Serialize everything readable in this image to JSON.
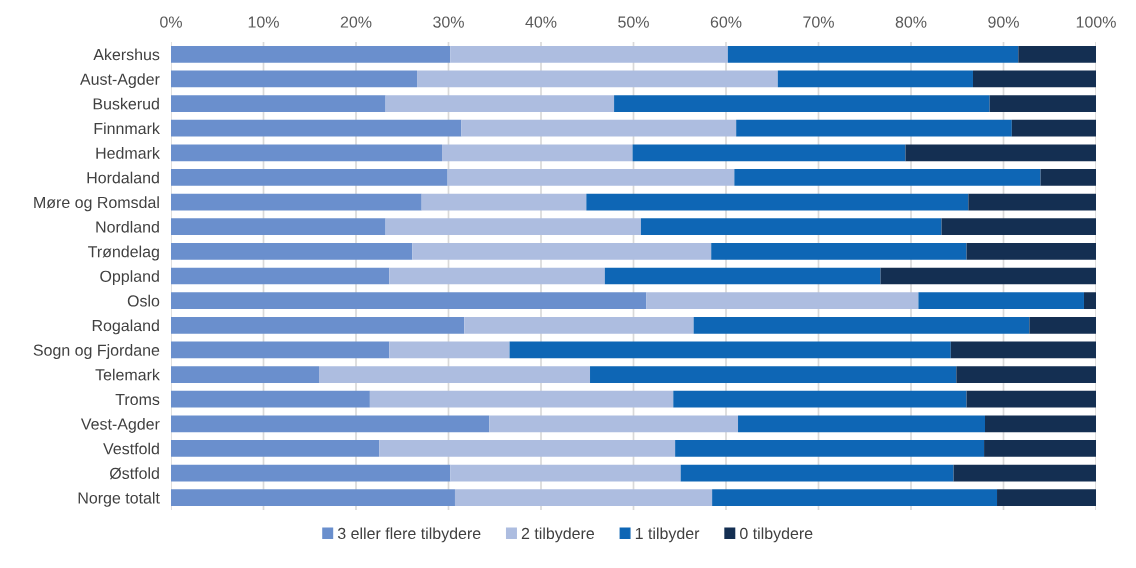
{
  "chart_data": {
    "type": "bar",
    "orientation": "horizontal",
    "stacked": true,
    "categories": [
      "Akershus",
      "Aust-Agder",
      "Buskerud",
      "Finnmark",
      "Hedmark",
      "Hordaland",
      "Møre og Romsdal",
      "Nordland",
      "Trøndelag",
      "Oppland",
      "Oslo",
      "Rogaland",
      "Sogn og Fjordane",
      "Telemark",
      "Troms",
      "Vest-Agder",
      "Vestfold",
      "Østfold",
      "Norge totalt"
    ],
    "series": [
      {
        "name": "3 eller flere tilbydere",
        "color": "#6a8fcd",
        "values": [
          30.2,
          26.6,
          23.2,
          31.4,
          29.3,
          29.9,
          27.1,
          23.2,
          26.1,
          23.6,
          51.4,
          31.7,
          23.6,
          16.0,
          21.5,
          34.4,
          22.5,
          30.2,
          30.7
        ]
      },
      {
        "name": "2 tilbydere",
        "color": "#adbde0",
        "values": [
          30.0,
          39.0,
          24.7,
          29.7,
          20.6,
          31.0,
          17.8,
          27.6,
          32.3,
          23.3,
          29.4,
          24.8,
          13.0,
          29.3,
          32.8,
          26.9,
          32.0,
          24.9,
          27.8
        ]
      },
      {
        "name": "1 tilbyder",
        "color": "#0e66b5",
        "values": [
          31.4,
          21.1,
          40.6,
          29.8,
          29.5,
          33.1,
          41.3,
          32.5,
          27.6,
          29.8,
          17.9,
          36.3,
          47.7,
          39.6,
          31.7,
          26.7,
          33.4,
          29.5,
          30.8
        ]
      },
      {
        "name": "0 tilbydere",
        "color": "#142f52",
        "values": [
          8.4,
          13.3,
          11.5,
          9.1,
          20.6,
          6.0,
          13.8,
          16.7,
          14.0,
          23.3,
          1.3,
          7.2,
          15.7,
          15.1,
          14.0,
          12.0,
          12.1,
          15.4,
          10.7
        ]
      }
    ],
    "xlim": [
      0,
      100
    ],
    "xticks": [
      {
        "value": 0,
        "label": "0%"
      },
      {
        "value": 10,
        "label": "10%"
      },
      {
        "value": 20,
        "label": "20%"
      },
      {
        "value": 30,
        "label": "30%"
      },
      {
        "value": 40,
        "label": "40%"
      },
      {
        "value": 50,
        "label": "50%"
      },
      {
        "value": 60,
        "label": "60%"
      },
      {
        "value": 70,
        "label": "70%"
      },
      {
        "value": 80,
        "label": "80%"
      },
      {
        "value": 90,
        "label": "90%"
      },
      {
        "value": 100,
        "label": "100%"
      }
    ],
    "grid": "x",
    "legend": "bottom"
  }
}
